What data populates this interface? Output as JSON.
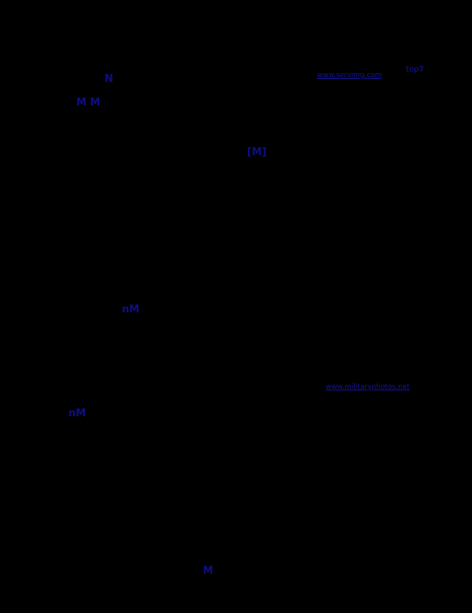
{
  "page": {
    "background_color": "#000000",
    "glyph_color": "#0e0e85",
    "link_color": "#1313a6"
  },
  "markers": {
    "glyph_a": "N",
    "glyph_b": "M M",
    "glyph_c": "[M]",
    "glyph_d": "nM",
    "glyph_e": "nM",
    "glyph_f": "M"
  },
  "links": {
    "image_host": "www.servimg.com",
    "top": "top7",
    "external": "www.militaryphotos.net"
  }
}
